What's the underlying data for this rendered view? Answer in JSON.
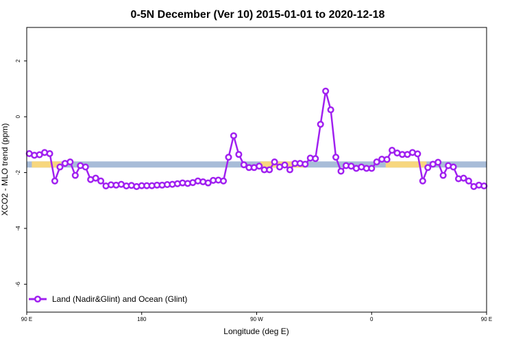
{
  "chart_data": {
    "type": "line",
    "title": "0-5N December (Ver 10)   2015-01-01 to 2020-12-18",
    "xlabel": "Longitude (deg E)",
    "ylabel": "XCO2 - MLO trend (ppm)",
    "xlim": [
      90,
      450
    ],
    "ylim": [
      -7,
      3.2
    ],
    "x_ticks": [
      {
        "value": 90,
        "label": "90 E"
      },
      {
        "value": 180,
        "label": "180"
      },
      {
        "value": 270,
        "label": "90 W"
      },
      {
        "value": 360,
        "label": "0"
      },
      {
        "value": 450,
        "label": "90 E"
      },
      {
        "value": 540,
        "label": "180"
      }
    ],
    "y_ticks": [
      {
        "value": 2,
        "label": "2"
      },
      {
        "value": 0,
        "label": "0"
      },
      {
        "value": -2,
        "label": "-2"
      },
      {
        "value": -4,
        "label": "-4"
      },
      {
        "value": -6,
        "label": "-6"
      }
    ],
    "grid": false,
    "legend_position": "bottom-left",
    "surface_strip": {
      "y_range": [
        -1.82,
        -1.6
      ],
      "ocean_color": "#a8bcd8",
      "land_color": "#f7d77e",
      "land_segments": [
        [
          94,
          117
        ],
        [
          273,
          308
        ],
        [
          371,
          403
        ],
        [
          477,
          490
        ],
        [
          495,
          505
        ]
      ]
    },
    "series": [
      {
        "name": "Land (Nadir&Glint) and Ocean (Glint)",
        "color": "#a020f0",
        "points": [
          [
            92,
            -1.32
          ],
          [
            96,
            -1.38
          ],
          [
            100,
            -1.36
          ],
          [
            104,
            -1.28
          ],
          [
            108,
            -1.32
          ],
          [
            112,
            -2.3
          ],
          [
            116,
            -1.8
          ],
          [
            120,
            -1.67
          ],
          [
            124,
            -1.62
          ],
          [
            128,
            -2.1
          ],
          [
            132,
            -1.75
          ],
          [
            136,
            -1.8
          ],
          [
            140,
            -2.25
          ],
          [
            144,
            -2.2
          ],
          [
            148,
            -2.3
          ],
          [
            152,
            -2.48
          ],
          [
            156,
            -2.44
          ],
          [
            160,
            -2.45
          ],
          [
            164,
            -2.42
          ],
          [
            168,
            -2.48
          ],
          [
            172,
            -2.46
          ],
          [
            176,
            -2.5
          ],
          [
            180,
            -2.47
          ],
          [
            184,
            -2.47
          ],
          [
            188,
            -2.47
          ],
          [
            192,
            -2.45
          ],
          [
            196,
            -2.45
          ],
          [
            200,
            -2.43
          ],
          [
            204,
            -2.42
          ],
          [
            208,
            -2.4
          ],
          [
            212,
            -2.37
          ],
          [
            216,
            -2.39
          ],
          [
            220,
            -2.36
          ],
          [
            224,
            -2.3
          ],
          [
            228,
            -2.33
          ],
          [
            232,
            -2.37
          ],
          [
            236,
            -2.28
          ],
          [
            240,
            -2.27
          ],
          [
            244,
            -2.3
          ],
          [
            248,
            -1.45
          ],
          [
            252,
            -0.68
          ],
          [
            256,
            -1.35
          ],
          [
            260,
            -1.72
          ],
          [
            264,
            -1.82
          ],
          [
            268,
            -1.82
          ],
          [
            272,
            -1.77
          ],
          [
            276,
            -1.9
          ],
          [
            280,
            -1.9
          ],
          [
            284,
            -1.62
          ],
          [
            288,
            -1.8
          ],
          [
            292,
            -1.73
          ],
          [
            296,
            -1.9
          ],
          [
            300,
            -1.67
          ],
          [
            304,
            -1.67
          ],
          [
            308,
            -1.7
          ],
          [
            312,
            -1.48
          ],
          [
            316,
            -1.5
          ],
          [
            320,
            -0.27
          ],
          [
            324,
            0.92
          ],
          [
            328,
            0.25
          ],
          [
            332,
            -1.45
          ],
          [
            336,
            -1.95
          ],
          [
            340,
            -1.75
          ],
          [
            344,
            -1.77
          ],
          [
            348,
            -1.85
          ],
          [
            352,
            -1.8
          ],
          [
            356,
            -1.85
          ],
          [
            360,
            -1.85
          ],
          [
            364,
            -1.62
          ],
          [
            368,
            -1.52
          ],
          [
            372,
            -1.53
          ],
          [
            376,
            -1.2
          ],
          [
            380,
            -1.3
          ],
          [
            384,
            -1.35
          ],
          [
            388,
            -1.35
          ],
          [
            392,
            -1.28
          ],
          [
            396,
            -1.33
          ],
          [
            400,
            -2.3
          ],
          [
            404,
            -1.82
          ],
          [
            408,
            -1.7
          ],
          [
            412,
            -1.63
          ],
          [
            416,
            -2.1
          ],
          [
            420,
            -1.75
          ],
          [
            424,
            -1.8
          ],
          [
            428,
            -2.22
          ],
          [
            432,
            -2.2
          ],
          [
            436,
            -2.3
          ],
          [
            440,
            -2.5
          ],
          [
            444,
            -2.45
          ],
          [
            448,
            -2.48
          ]
        ]
      }
    ]
  }
}
